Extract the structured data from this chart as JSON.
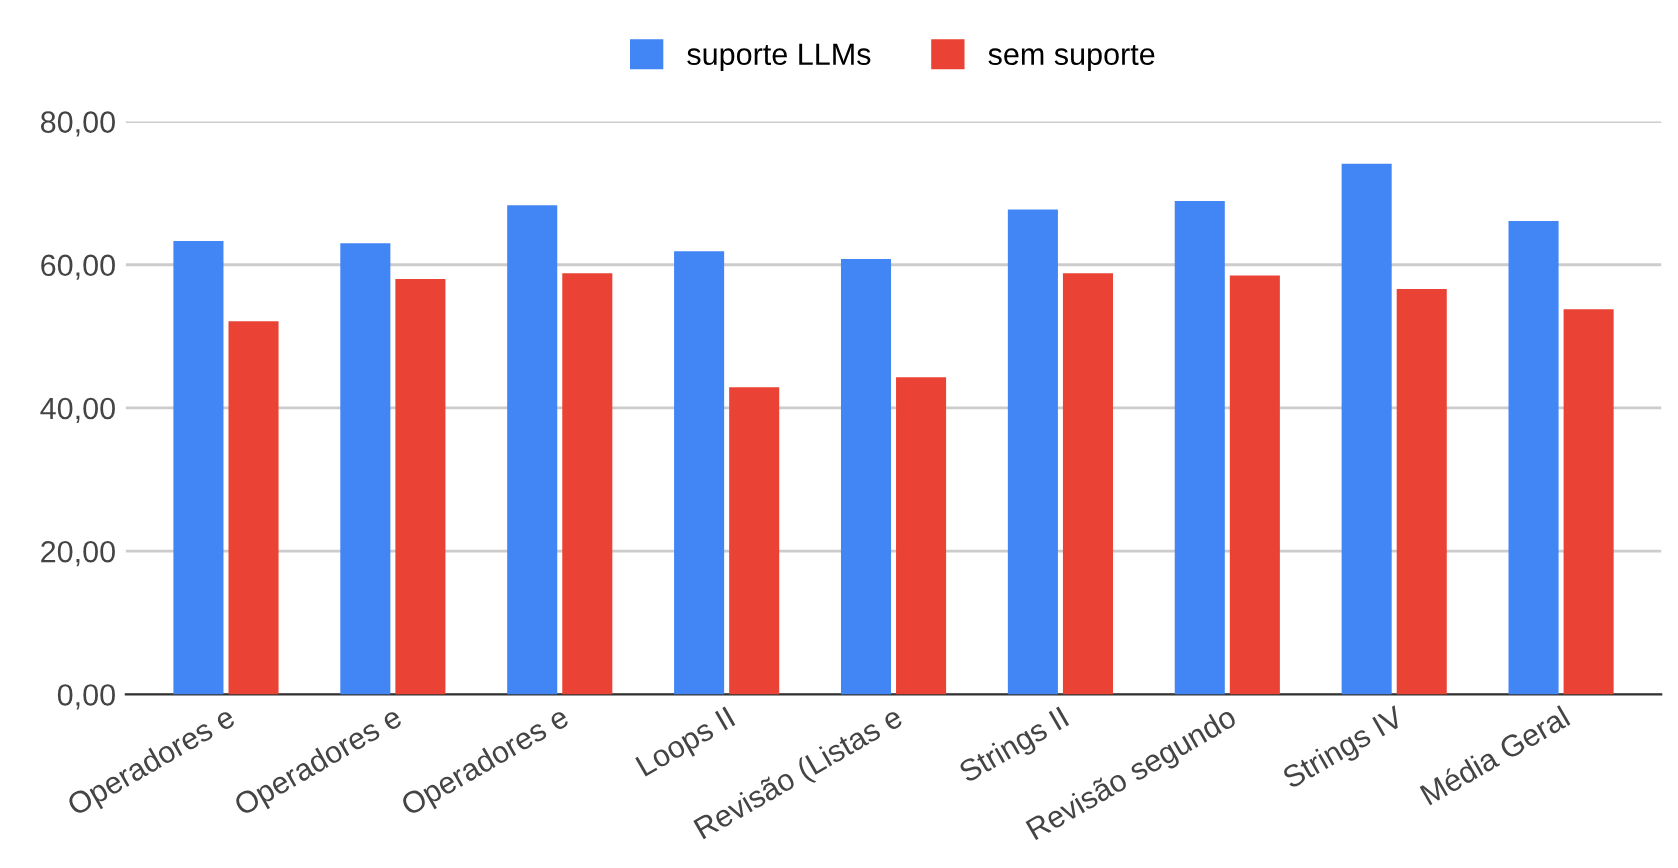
{
  "chart_data": {
    "type": "bar",
    "categories": [
      "Operadores e",
      "Operadores e",
      "Operadores e",
      "Loops II",
      "Revisão (Listas e",
      "Strings II",
      "Revisão segundo",
      "Strings IV",
      "Média Geral"
    ],
    "series": [
      {
        "name": "suporte LLMs",
        "color": "#4285f4",
        "values": [
          63.3,
          63.0,
          68.3,
          61.9,
          60.8,
          67.7,
          68.9,
          74.1,
          66.1
        ]
      },
      {
        "name": "sem suporte",
        "color": "#ea4335",
        "values": [
          52.1,
          58.0,
          58.8,
          42.9,
          44.3,
          58.8,
          58.5,
          56.6,
          53.8
        ]
      }
    ],
    "ylim": [
      0,
      80
    ],
    "yticks": [
      {
        "value": 0,
        "label": "0,00"
      },
      {
        "value": 20,
        "label": "20,00"
      },
      {
        "value": 40,
        "label": "40,00"
      },
      {
        "value": 60,
        "label": "60,00"
      },
      {
        "value": 80,
        "label": "80,00"
      }
    ],
    "grid": "y",
    "legend": "top"
  }
}
